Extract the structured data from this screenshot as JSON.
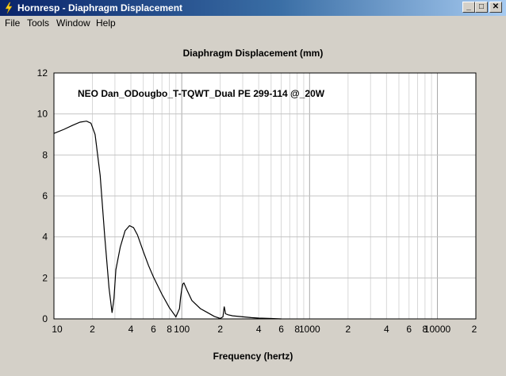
{
  "window": {
    "title": "Hornresp - Diaphragm Displacement",
    "buttons": {
      "minimize": "_",
      "maximize": "□",
      "close": "✕"
    }
  },
  "menu": {
    "items": [
      "File",
      "Tools",
      "Window",
      "Help"
    ]
  },
  "chart_data": {
    "type": "line",
    "title": "Diaphragm Displacement (mm)",
    "xlabel": "Frequency (hertz)",
    "ylabel": "",
    "annotation": "NEO Dan_ODougbo_T-TQWT_Dual PE 299-114 @_20W",
    "x_scale": "log",
    "xlim": [
      10,
      20000
    ],
    "ylim": [
      0,
      12
    ],
    "grid": true,
    "x_tick_labels": [
      {
        "value": 10,
        "label": "10"
      },
      {
        "value": 20,
        "label": "2"
      },
      {
        "value": 40,
        "label": "4"
      },
      {
        "value": 60,
        "label": "6"
      },
      {
        "value": 80,
        "label": "8"
      },
      {
        "value": 100,
        "label": "100"
      },
      {
        "value": 200,
        "label": "2"
      },
      {
        "value": 400,
        "label": "4"
      },
      {
        "value": 600,
        "label": "6"
      },
      {
        "value": 800,
        "label": "8"
      },
      {
        "value": 1000,
        "label": "1000"
      },
      {
        "value": 2000,
        "label": "2"
      },
      {
        "value": 4000,
        "label": "4"
      },
      {
        "value": 6000,
        "label": "6"
      },
      {
        "value": 8000,
        "label": "8"
      },
      {
        "value": 10000,
        "label": "10000"
      },
      {
        "value": 20000,
        "label": "2"
      }
    ],
    "y_ticks": [
      0,
      2,
      4,
      6,
      8,
      10,
      12
    ],
    "series": [
      {
        "color": "#000000",
        "x": [
          10,
          12,
          14,
          16,
          18,
          19.5,
          21,
          23,
          25,
          27,
          28.5,
          29.5,
          30.5,
          33,
          36,
          39,
          42,
          45,
          50,
          55,
          60,
          70,
          80,
          90,
          96,
          98,
          100,
          102,
          104,
          110,
          120,
          140,
          160,
          180,
          200,
          210,
          215,
          218,
          220,
          230,
          250,
          300,
          350,
          400,
          500,
          600
        ],
        "y": [
          9.05,
          9.25,
          9.45,
          9.6,
          9.65,
          9.55,
          9.0,
          7.0,
          4.0,
          1.5,
          0.3,
          1.0,
          2.4,
          3.5,
          4.3,
          4.55,
          4.45,
          4.1,
          3.3,
          2.6,
          2.05,
          1.2,
          0.55,
          0.1,
          0.5,
          1.05,
          1.45,
          1.7,
          1.75,
          1.4,
          0.9,
          0.5,
          0.3,
          0.12,
          0.02,
          0.1,
          0.6,
          0.4,
          0.25,
          0.2,
          0.15,
          0.1,
          0.06,
          0.04,
          0.02,
          0.0
        ]
      }
    ]
  }
}
